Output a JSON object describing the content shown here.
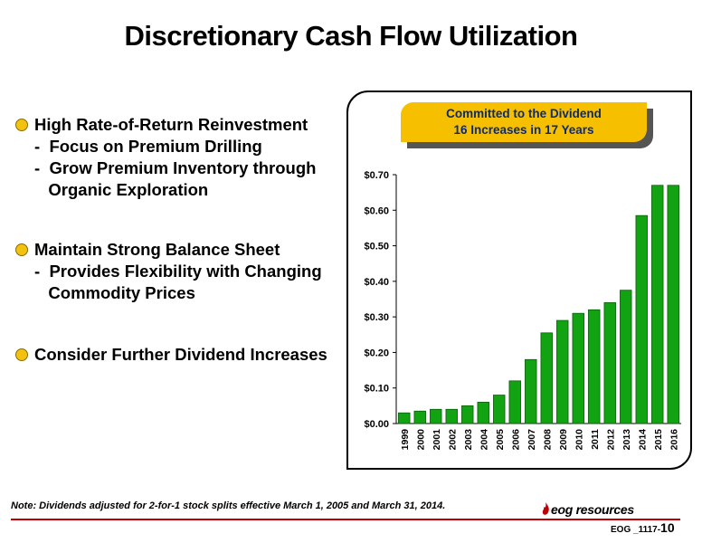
{
  "title": "Discretionary Cash Flow Utilization",
  "bullets": [
    {
      "head": "High Rate-of-Return Reinvestment",
      "subs": [
        "-  Focus on Premium Drilling",
        "-  Grow Premium Inventory through",
        "   Organic Exploration"
      ]
    },
    {
      "head": "Maintain Strong Balance Sheet",
      "subs": [
        "-  Provides Flexibility with Changing",
        "   Commodity Prices"
      ]
    },
    {
      "head": "Consider Further Dividend Increases",
      "subs": []
    }
  ],
  "callout": {
    "line1": "Committed to the Dividend",
    "line2": "16 Increases in 17 Years"
  },
  "chart_data": {
    "type": "bar",
    "categories": [
      "1999",
      "2000",
      "2001",
      "2002",
      "2003",
      "2004",
      "2005",
      "2006",
      "2007",
      "2008",
      "2009",
      "2010",
      "2011",
      "2012",
      "2013",
      "2014",
      "2015",
      "2016"
    ],
    "values": [
      0.03,
      0.035,
      0.04,
      0.04,
      0.05,
      0.06,
      0.08,
      0.12,
      0.18,
      0.255,
      0.29,
      0.31,
      0.32,
      0.34,
      0.375,
      0.585,
      0.67,
      0.67
    ],
    "yticks": [
      "$0.00",
      "$0.10",
      "$0.20",
      "$0.30",
      "$0.40",
      "$0.50",
      "$0.60",
      "$0.70"
    ],
    "ylim": [
      0,
      0.7
    ],
    "bar_color": "#12a312",
    "bar_edge": "#0b5c0b",
    "grid": false
  },
  "note": "Note: Dividends adjusted for 2-for-1 stock splits effective March 1, 2005 and March 31, 2014.",
  "logo_text": "eog resources",
  "slide_id": {
    "prefix": "EOG _1117-",
    "num": "10"
  },
  "colors": {
    "bullet": "#f2c20f",
    "callout": "#f6bf00",
    "callout_text": "#0b2a73",
    "rule": "#c00000"
  }
}
